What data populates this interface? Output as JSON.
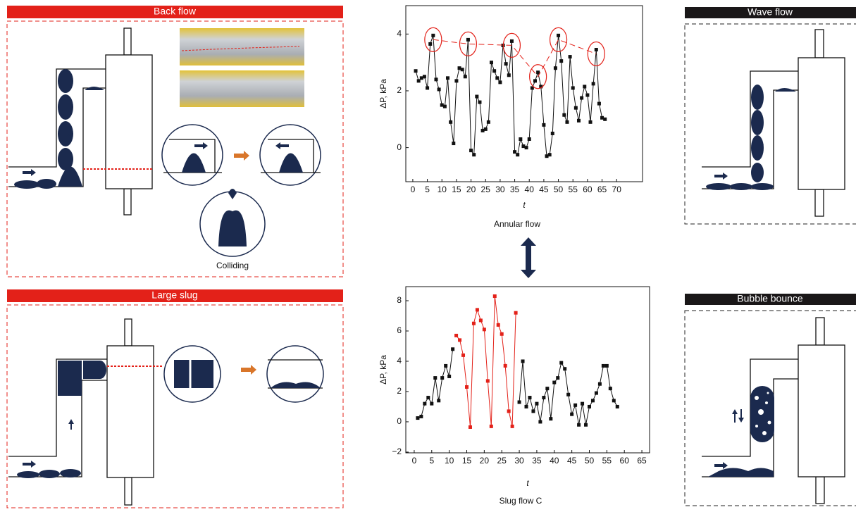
{
  "panels": [
    {
      "title": "Back flow",
      "label": "Colliding"
    },
    {
      "title": "Large slug"
    },
    {
      "title": "Wave flow"
    },
    {
      "title": "Bubble bounce"
    }
  ],
  "chart_data": [
    {
      "type": "line",
      "title": "Annular flow",
      "x_label": "t",
      "y_label": "ΔP, kPa",
      "x": [
        1,
        2,
        3,
        4,
        5,
        6,
        7,
        8,
        9,
        10,
        11,
        12,
        13,
        14,
        15,
        16,
        17,
        18,
        19,
        20,
        21,
        22,
        23,
        24,
        25,
        26,
        27,
        28,
        29,
        30,
        31,
        32,
        33,
        34,
        35,
        36,
        37,
        38,
        39,
        40,
        41,
        42,
        43,
        44,
        45,
        46,
        47,
        48,
        49,
        50,
        51,
        52,
        53,
        54,
        55,
        56,
        57,
        58,
        59,
        60,
        61,
        62,
        63,
        64,
        65,
        66
      ],
      "series": [
        {
          "color": "#111111",
          "values": [
            2.7,
            2.35,
            2.45,
            2.5,
            2.1,
            3.65,
            3.95,
            2.4,
            2.05,
            1.5,
            1.45,
            2.45,
            0.9,
            0.15,
            2.35,
            2.8,
            2.75,
            2.5,
            3.8,
            -0.1,
            -0.25,
            1.8,
            1.6,
            0.6,
            0.65,
            0.9,
            3.0,
            2.7,
            2.45,
            2.3,
            3.6,
            2.95,
            2.55,
            3.75,
            -0.15,
            -0.25,
            0.3,
            0.05,
            0,
            0.3,
            2.1,
            2.35,
            2.65,
            2.15,
            0.8,
            -0.3,
            -0.25,
            0.5,
            2.8,
            3.95,
            3.05,
            1.15,
            0.9,
            3.2,
            2.1,
            1.4,
            0.95,
            1.75,
            2.15,
            1.85,
            0.9,
            2.25,
            3.45,
            1.55,
            1.05,
            1.0
          ]
        }
      ],
      "xlim": [
        -2.4,
        78.9
      ],
      "ylim": [
        -1.2,
        5
      ],
      "xticks": [
        0,
        5,
        10,
        15,
        20,
        25,
        30,
        35,
        40,
        45,
        50,
        55,
        60,
        65,
        70
      ],
      "yticks": [
        0,
        2,
        4
      ]
    },
    {
      "type": "line",
      "title": "Slug flow C",
      "x_label": "t",
      "y_label": "ΔP, kPa",
      "x": [
        1,
        2,
        3,
        4,
        5,
        6,
        7,
        8,
        9,
        10,
        11,
        12,
        13,
        14,
        15,
        16,
        17,
        18,
        19,
        20,
        21,
        22,
        23,
        24,
        25,
        26,
        27,
        28,
        29,
        30,
        31,
        32,
        33,
        34,
        35,
        36,
        37,
        38,
        39,
        40,
        41,
        42,
        43,
        44,
        45,
        46,
        47,
        48,
        49,
        50,
        51,
        52,
        53,
        54,
        55,
        56,
        57,
        58
      ],
      "series": [
        {
          "color": "#111111",
          "values": [
            0.25,
            0.35,
            1.2,
            1.6,
            1.2,
            2.9,
            1.4,
            2.9,
            3.7,
            3.0,
            4.8,
            null,
            null,
            null,
            null,
            null,
            null,
            null,
            null,
            null,
            null,
            null,
            null,
            null,
            null,
            null,
            null,
            null,
            null,
            1.3,
            4.0,
            1.0,
            1.6,
            0.7,
            1.2,
            0,
            1.6,
            2.2,
            0.2,
            2.6,
            2.9,
            3.9,
            3.5,
            1.8,
            0.5,
            1.1,
            -0.2,
            1.2,
            -0.2,
            1.0,
            1.4,
            1.9,
            2.5,
            3.7,
            3.7,
            2.2,
            1.4,
            1.0
          ]
        },
        {
          "color": "#e32119",
          "values": [
            null,
            null,
            null,
            null,
            null,
            null,
            null,
            null,
            null,
            null,
            null,
            5.7,
            5.4,
            4.4,
            2.3,
            -0.35,
            6.5,
            7.4,
            6.7,
            6.1,
            2.7,
            -0.3,
            8.3,
            6.4,
            5.8,
            3.7,
            0.7,
            -0.3,
            7.2,
            null,
            null,
            null,
            null,
            null,
            null,
            null,
            null,
            null,
            null,
            null,
            null,
            null,
            null,
            null,
            null,
            null,
            null,
            null,
            null,
            null,
            null,
            null,
            null,
            null,
            null,
            null,
            null,
            null
          ]
        }
      ],
      "xlim": [
        -2.4,
        67.2
      ],
      "ylim": [
        -2.05,
        8.93
      ],
      "xticks": [
        0,
        5,
        10,
        15,
        20,
        25,
        30,
        35,
        40,
        45,
        50,
        55,
        60,
        65
      ],
      "yticks": [
        {
          "value": -2,
          "label": "−2"
        },
        0,
        2,
        4,
        6,
        8
      ]
    }
  ]
}
